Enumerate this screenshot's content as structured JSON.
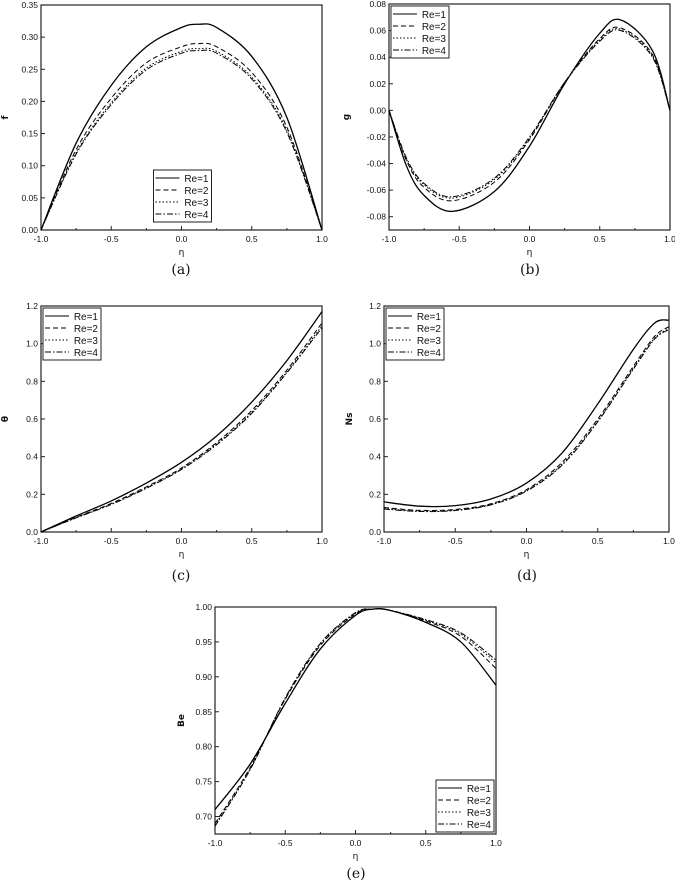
{
  "legend_labels": [
    "Re=1",
    "Re=2",
    "Re=3",
    "Re=4"
  ],
  "line_styles": [
    "solid",
    "dashed",
    "dotted",
    "dash-dot"
  ],
  "line_color": "#000000",
  "chart_data": [
    {
      "type": "line",
      "caption": "(a)",
      "xlabel": "η",
      "ylabel": "f",
      "xlim": [
        -1,
        1
      ],
      "ylim": [
        0,
        0.35
      ],
      "grid": false,
      "legend": "bottom-center",
      "xticks": [
        -1.0,
        -0.5,
        0.0,
        0.5,
        1.0
      ],
      "xtick_labels": [
        "-1.0",
        "-0.5",
        "0.0",
        "0.5",
        "1.0"
      ],
      "yticks": [
        0,
        0.05,
        0.1,
        0.15,
        0.2,
        0.25,
        0.3,
        0.35
      ],
      "ytick_labels": [
        "0.00",
        "0.05",
        "0.10",
        "0.15",
        "0.20",
        "0.25",
        "0.30",
        "0.35"
      ],
      "x": [
        -1,
        -0.75,
        -0.5,
        -0.25,
        0,
        0.125,
        0.25,
        0.5,
        0.75,
        1
      ],
      "series": [
        {
          "name": "Re=1",
          "values": [
            0,
            0.135,
            0.225,
            0.285,
            0.315,
            0.32,
            0.315,
            0.27,
            0.175,
            0
          ]
        },
        {
          "name": "Re=2",
          "values": [
            0,
            0.125,
            0.205,
            0.26,
            0.285,
            0.29,
            0.285,
            0.245,
            0.16,
            0
          ]
        },
        {
          "name": "Re=3",
          "values": [
            0,
            0.12,
            0.198,
            0.252,
            0.278,
            0.282,
            0.278,
            0.238,
            0.155,
            0
          ]
        },
        {
          "name": "Re=4",
          "values": [
            0,
            0.118,
            0.195,
            0.249,
            0.275,
            0.279,
            0.275,
            0.235,
            0.152,
            0
          ]
        }
      ]
    },
    {
      "type": "line",
      "caption": "(b)",
      "xlabel": "η",
      "ylabel": "g",
      "xlim": [
        -1,
        1
      ],
      "ylim": [
        -0.09,
        0.08
      ],
      "grid": false,
      "legend": "top-left",
      "xticks": [
        -1.0,
        -0.5,
        0.0,
        0.5,
        1.0
      ],
      "xtick_labels": [
        "-1.0",
        "-0.5",
        "0.0",
        "0.5",
        "1.0"
      ],
      "yticks": [
        -0.08,
        -0.06,
        -0.04,
        -0.02,
        0,
        0.02,
        0.04,
        0.06,
        0.08
      ],
      "ytick_labels": [
        "-0.08",
        "-0.06",
        "-0.04",
        "-0.02",
        "0.00",
        "0.02",
        "0.04",
        "0.06",
        "0.08"
      ],
      "x": [
        -1,
        -0.875,
        -0.75,
        -0.55,
        -0.25,
        0,
        0.25,
        0.5,
        0.65,
        0.875,
        1
      ],
      "series": [
        {
          "name": "Re=1",
          "values": [
            0,
            -0.042,
            -0.064,
            -0.076,
            -0.061,
            -0.027,
            0.02,
            0.058,
            0.068,
            0.045,
            0
          ]
        },
        {
          "name": "Re=2",
          "values": [
            0,
            -0.038,
            -0.058,
            -0.068,
            -0.054,
            -0.022,
            0.021,
            0.054,
            0.062,
            0.042,
            0
          ]
        },
        {
          "name": "Re=3",
          "values": [
            0,
            -0.037,
            -0.056,
            -0.066,
            -0.052,
            -0.021,
            0.021,
            0.053,
            0.061,
            0.041,
            0
          ]
        },
        {
          "name": "Re=4",
          "values": [
            0,
            -0.036,
            -0.055,
            -0.065,
            -0.051,
            -0.02,
            0.021,
            0.052,
            0.06,
            0.04,
            0
          ]
        }
      ]
    },
    {
      "type": "line",
      "caption": "(c)",
      "xlabel": "η",
      "ylabel": "θ",
      "xlim": [
        -1,
        1
      ],
      "ylim": [
        0,
        1.2
      ],
      "grid": false,
      "legend": "top-left",
      "xticks": [
        -1.0,
        -0.5,
        0.0,
        0.5,
        1.0
      ],
      "xtick_labels": [
        "-1.0",
        "-0.5",
        "0.0",
        "0.5",
        "1.0"
      ],
      "yticks": [
        0,
        0.2,
        0.4,
        0.6,
        0.8,
        1.0,
        1.2
      ],
      "ytick_labels": [
        "0.0",
        "0.2",
        "0.4",
        "0.6",
        "0.8",
        "1.0",
        "1.2"
      ],
      "x": [
        -1,
        -0.75,
        -0.5,
        -0.25,
        0,
        0.25,
        0.5,
        0.75,
        1
      ],
      "series": [
        {
          "name": "Re=1",
          "values": [
            0,
            0.085,
            0.165,
            0.26,
            0.37,
            0.51,
            0.69,
            0.91,
            1.17
          ]
        },
        {
          "name": "Re=2",
          "values": [
            0,
            0.078,
            0.152,
            0.24,
            0.34,
            0.475,
            0.645,
            0.86,
            1.11
          ]
        },
        {
          "name": "Re=3",
          "values": [
            0,
            0.076,
            0.148,
            0.235,
            0.335,
            0.468,
            0.635,
            0.85,
            1.095
          ]
        },
        {
          "name": "Re=4",
          "values": [
            0,
            0.075,
            0.146,
            0.232,
            0.332,
            0.463,
            0.63,
            0.845,
            1.085
          ]
        }
      ]
    },
    {
      "type": "line",
      "caption": "(d)",
      "xlabel": "η",
      "ylabel": "Ns",
      "xlim": [
        -1,
        1
      ],
      "ylim": [
        0,
        1.2
      ],
      "grid": false,
      "legend": "top-left",
      "xticks": [
        -1.0,
        -0.5,
        0.0,
        0.5,
        1.0
      ],
      "xtick_labels": [
        "-1.0",
        "-0.5",
        "0.0",
        "0.5",
        "1.0"
      ],
      "yticks": [
        0,
        0.2,
        0.4,
        0.6,
        0.8,
        1.0,
        1.2
      ],
      "ytick_labels": [
        "0.0",
        "0.2",
        "0.4",
        "0.6",
        "0.8",
        "1.0",
        "1.2"
      ],
      "x": [
        -1,
        -0.75,
        -0.5,
        -0.25,
        0,
        0.25,
        0.5,
        0.75,
        0.9,
        1
      ],
      "series": [
        {
          "name": "Re=1",
          "values": [
            0.16,
            0.137,
            0.14,
            0.175,
            0.26,
            0.42,
            0.68,
            0.97,
            1.11,
            1.125
          ]
        },
        {
          "name": "Re=2",
          "values": [
            0.13,
            0.115,
            0.12,
            0.15,
            0.225,
            0.37,
            0.6,
            0.88,
            1.04,
            1.09
          ]
        },
        {
          "name": "Re=3",
          "values": [
            0.125,
            0.111,
            0.116,
            0.146,
            0.22,
            0.36,
            0.59,
            0.87,
            1.03,
            1.08
          ]
        },
        {
          "name": "Re=4",
          "values": [
            0.122,
            0.109,
            0.114,
            0.144,
            0.217,
            0.355,
            0.585,
            0.865,
            1.025,
            1.075
          ]
        }
      ]
    },
    {
      "type": "line",
      "caption": "(e)",
      "xlabel": "η",
      "ylabel": "Be",
      "xlim": [
        -1,
        1
      ],
      "ylim": [
        0.675,
        1.0
      ],
      "grid": false,
      "legend": "bottom-right",
      "xticks": [
        -1.0,
        -0.5,
        0.0,
        0.5,
        1.0
      ],
      "xtick_labels": [
        "-1.0",
        "-0.5",
        "0.0",
        "0.5",
        "1.0"
      ],
      "yticks": [
        0.7,
        0.75,
        0.8,
        0.85,
        0.9,
        0.95,
        1.0
      ],
      "ytick_labels": [
        "0.70",
        "0.75",
        "0.80",
        "0.85",
        "0.90",
        "0.95",
        "1.00"
      ],
      "x": [
        -1,
        -0.75,
        -0.5,
        -0.25,
        0,
        0.125,
        0.25,
        0.5,
        0.75,
        1
      ],
      "series": [
        {
          "name": "Re=1",
          "values": [
            0.71,
            0.775,
            0.862,
            0.94,
            0.988,
            0.997,
            0.995,
            0.978,
            0.95,
            0.888
          ]
        },
        {
          "name": "Re=2",
          "values": [
            0.69,
            0.77,
            0.868,
            0.945,
            0.99,
            0.997,
            0.995,
            0.98,
            0.958,
            0.912
          ]
        },
        {
          "name": "Re=3",
          "values": [
            0.688,
            0.768,
            0.869,
            0.947,
            0.991,
            0.997,
            0.995,
            0.981,
            0.961,
            0.92
          ]
        },
        {
          "name": "Re=4",
          "values": [
            0.686,
            0.767,
            0.87,
            0.948,
            0.992,
            0.997,
            0.995,
            0.982,
            0.963,
            0.924
          ]
        }
      ]
    }
  ]
}
